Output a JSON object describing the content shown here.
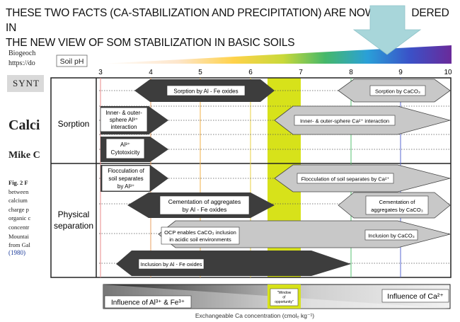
{
  "headline": {
    "line1": "THESE TWO FACTS (CA-STABILIZATION AND PRECIPITATION) ARE NOW C",
    "line1_end": "DERED IN",
    "line2": "THE NEW VIEW OF SOM STABILIZATION IN BASIC SOILS"
  },
  "background_paper": {
    "journal": "Biogeoch",
    "url": "https://do",
    "synth": "SYNT",
    "title_fragment": "Calci",
    "author_fragment": "Mike C",
    "caption_lines": [
      "Fig. 2  F",
      "between",
      "calcium",
      "charge p",
      "organic c",
      "concentr",
      "Mountai",
      "from Gal"
    ],
    "citation": "(1980)"
  },
  "diagram": {
    "ph_label": "Soil pH",
    "ph_ticks": [
      "3",
      "4",
      "5",
      "6",
      "7",
      "8",
      "9",
      "10"
    ],
    "categories": {
      "sorption": "Sorption",
      "physical_1": "Physical",
      "physical_2": "separation"
    },
    "processes": {
      "sorption_al_fe": "Sorption by Al - Fe oxides",
      "sorption_caco3": "Sorption by CaCO₃",
      "inner_outer_al_1": "Inner- & outer-",
      "inner_outer_al_2": "sphere Al³⁺",
      "inner_outer_al_3": "interaction",
      "inner_outer_ca": "Inner- & outer-sphere Ca²⁺ interaction",
      "al_tox_1": "Al³⁺",
      "al_tox_2": "Cytotoxicity",
      "floc_al_1": "Flocculation of",
      "floc_al_2": "soil separates",
      "floc_al_3": "by Al³⁺",
      "floc_ca": "Flocculation of soil separates by Ca²⁺",
      "cement_al_1": "Cementation of aggregates",
      "cement_al_2": "by Al - Fe oxides",
      "cement_ca_1": "Cementation of",
      "cement_ca_2": "aggregates by CaCO₃",
      "ocp_1": "OCP enables CaCO₃ inclusion",
      "ocp_2": "in acidic soil environments",
      "inclusion_caco3": "Inclusion by CaCO₃",
      "inclusion_al_fe": "Inclusion by Al - Fe oxides"
    },
    "influence_al_fe": "Influence of Al³⁺ & Fe³⁺",
    "influence_ca": "Influence of Ca²⁺",
    "window_1": "\"Window",
    "window_2": "of",
    "window_3": "opportunity\"",
    "bottom_axis": "Exchangeable Ca concentration (cmolₑ kg⁻¹)"
  },
  "colors": {
    "window_band": "#d7e21a",
    "dark_arrow": "#3d3d3d",
    "light_arrow": "#c8c8c8",
    "pointer_arrow": "#a8d6da"
  }
}
